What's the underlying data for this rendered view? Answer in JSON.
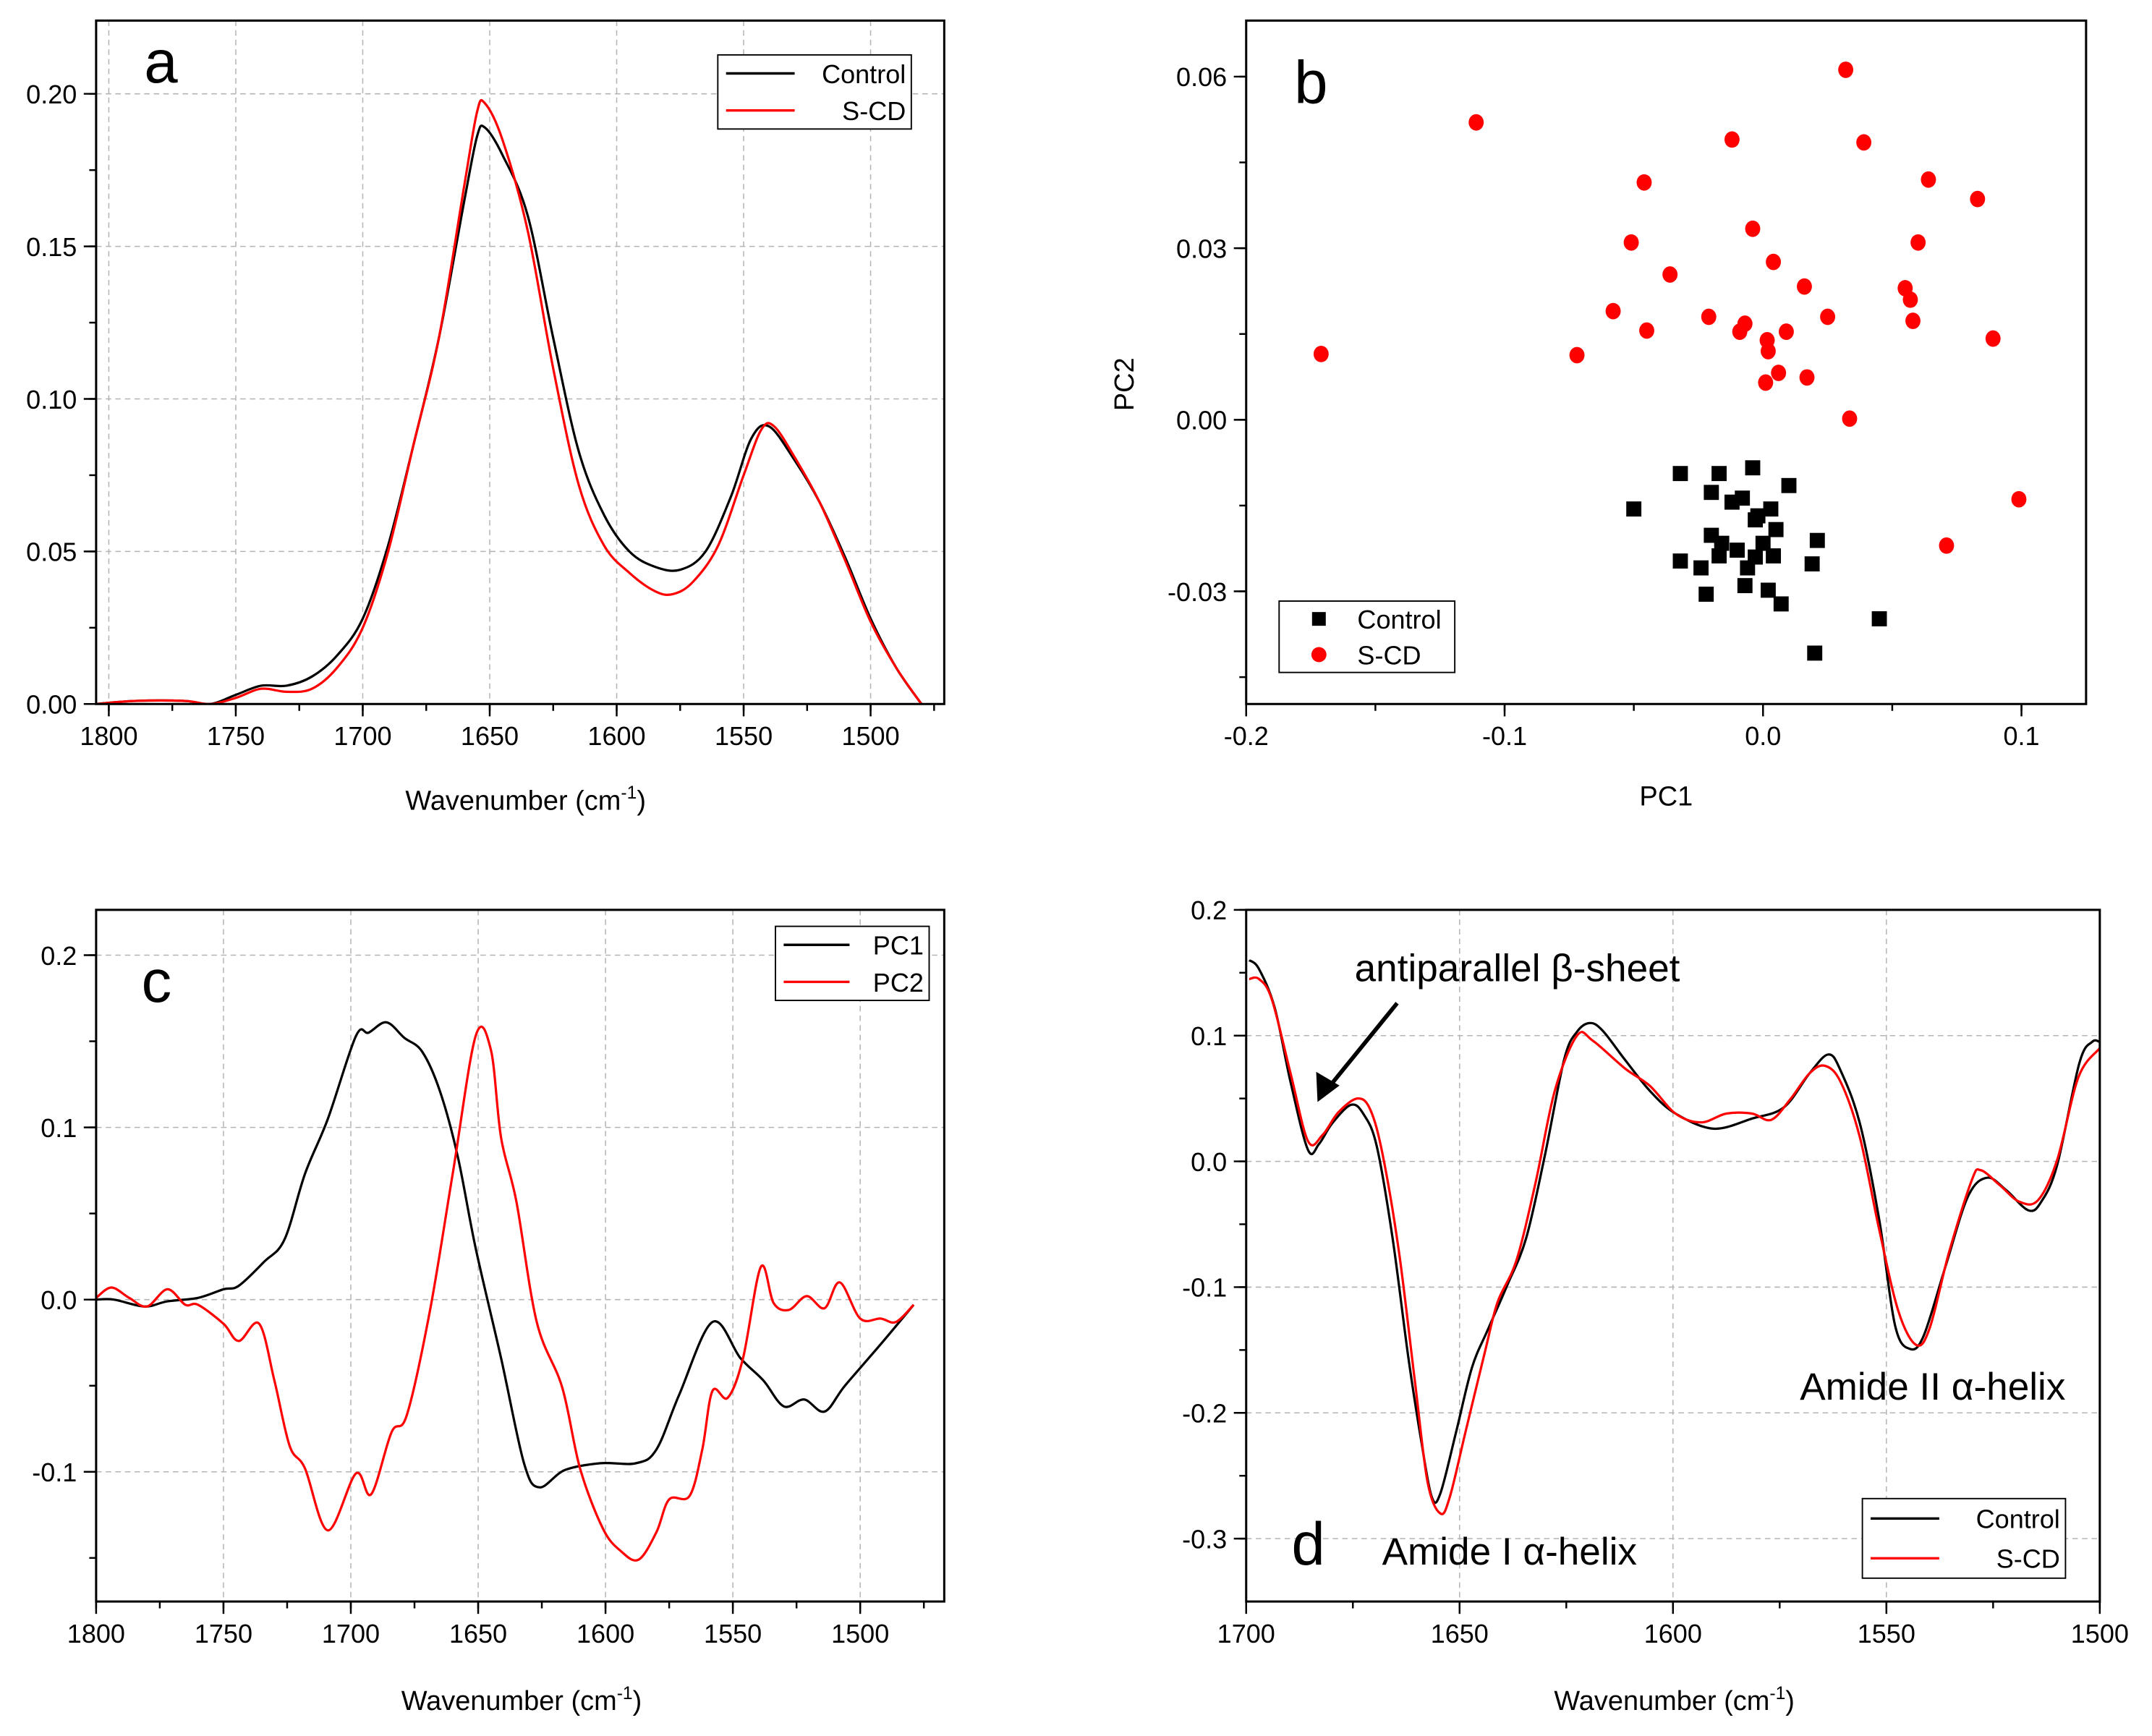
{
  "chart_data": [
    {
      "panel": "a",
      "type": "line",
      "title": "",
      "xlabel": "Wavenumber (cm",
      "xlabel_sup": "-1",
      "xlabel_end": ")",
      "ylabel": "",
      "xlim": [
        1805,
        1471
      ],
      "ylim": [
        0,
        0.224
      ],
      "grid": true,
      "legend_position": "top-right",
      "xticks": [
        {
          "v": 1800,
          "t": "1800"
        },
        {
          "v": 1750,
          "t": "1750"
        },
        {
          "v": 1700,
          "t": "1700"
        },
        {
          "v": 1650,
          "t": "1650"
        },
        {
          "v": 1600,
          "t": "1600"
        },
        {
          "v": 1550,
          "t": "1550"
        },
        {
          "v": 1500,
          "t": "1500"
        }
      ],
      "yticks": [
        {
          "v": 0,
          "t": "0.00"
        },
        {
          "v": 0.05,
          "t": "0.05"
        },
        {
          "v": 0.1,
          "t": "0.10"
        },
        {
          "v": 0.15,
          "t": "0.15"
        },
        {
          "v": 0.2,
          "t": "0.20"
        }
      ],
      "xminor": 25,
      "yminor": 0.025,
      "series": [
        {
          "name": "Control",
          "color": "#000000",
          "x": [
            1805,
            1790,
            1770,
            1760,
            1750,
            1740,
            1730,
            1720,
            1710,
            1700,
            1690,
            1680,
            1670,
            1660,
            1655,
            1652,
            1645,
            1635,
            1625,
            1615,
            1605,
            1595,
            1585,
            1575,
            1565,
            1555,
            1547,
            1540,
            1530,
            1520,
            1510,
            1500,
            1490,
            1480
          ],
          "y": [
            0,
            0.001,
            0.001,
            0,
            0.003,
            0.006,
            0.006,
            0.009,
            0.016,
            0.028,
            0.052,
            0.085,
            0.12,
            0.165,
            0.186,
            0.189,
            0.18,
            0.16,
            0.12,
            0.083,
            0.062,
            0.05,
            0.045,
            0.044,
            0.05,
            0.068,
            0.087,
            0.091,
            0.08,
            0.066,
            0.048,
            0.028,
            0.012,
            0
          ]
        },
        {
          "name": "S-CD",
          "color": "#ff0000",
          "x": [
            1805,
            1790,
            1770,
            1760,
            1750,
            1740,
            1730,
            1720,
            1710,
            1700,
            1690,
            1680,
            1670,
            1660,
            1655,
            1652,
            1645,
            1635,
            1625,
            1615,
            1605,
            1595,
            1585,
            1578,
            1570,
            1560,
            1550,
            1543,
            1538,
            1530,
            1520,
            1510,
            1500,
            1490,
            1480
          ],
          "y": [
            0,
            0.001,
            0.001,
            0,
            0.002,
            0.005,
            0.004,
            0.005,
            0.012,
            0.025,
            0.05,
            0.085,
            0.12,
            0.17,
            0.194,
            0.197,
            0.185,
            0.155,
            0.11,
            0.072,
            0.052,
            0.043,
            0.037,
            0.036,
            0.04,
            0.052,
            0.075,
            0.09,
            0.091,
            0.081,
            0.066,
            0.047,
            0.027,
            0.012,
            0
          ]
        }
      ],
      "annotations": []
    },
    {
      "panel": "b",
      "type": "scatter",
      "title": "",
      "xlabel": "PC1",
      "ylabel": "PC2",
      "xlim": [
        -0.2,
        0.125
      ],
      "ylim": [
        -0.0497,
        0.0698
      ],
      "grid": false,
      "legend_position": "bottom-left",
      "xticks": [
        {
          "v": -0.2,
          "t": "-0.2"
        },
        {
          "v": -0.1,
          "t": "-0.1"
        },
        {
          "v": 0,
          "t": "0.0"
        },
        {
          "v": 0.1,
          "t": "0.1"
        }
      ],
      "yticks": [
        {
          "v": -0.03,
          "t": "-0.03"
        },
        {
          "v": 0,
          "t": "0.00"
        },
        {
          "v": 0.03,
          "t": "0.03"
        },
        {
          "v": 0.06,
          "t": "0.06"
        }
      ],
      "xminor": 0.05,
      "yminor": 0.015,
      "series": [
        {
          "name": "Control",
          "color": "#000000",
          "marker": "square",
          "x": [
            -0.004,
            -0.032,
            -0.017,
            0.01,
            -0.02,
            -0.008,
            -0.012,
            0.003,
            -0.05,
            -0.002,
            -0.003,
            0.005,
            -0.02,
            0.021,
            -0.016,
            0.0,
            -0.01,
            -0.017,
            -0.003,
            0.004,
            -0.032,
            0.019,
            -0.006,
            -0.024,
            -0.007,
            0.002,
            -0.022,
            0.007,
            0.045,
            0.02
          ],
          "y": [
            -0.0084,
            -0.0094,
            -0.0094,
            -0.0115,
            -0.0127,
            -0.0137,
            -0.0144,
            -0.0156,
            -0.0156,
            -0.0168,
            -0.0175,
            -0.0192,
            -0.0202,
            -0.0211,
            -0.0216,
            -0.0216,
            -0.0228,
            -0.0238,
            -0.024,
            -0.0238,
            -0.0247,
            -0.0252,
            -0.0259,
            -0.0259,
            -0.029,
            -0.0298,
            -0.0305,
            -0.0322,
            -0.0348,
            -0.0408
          ]
        },
        {
          "name": "S-CD",
          "color": "#ff0000",
          "marker": "circle",
          "x": [
            0.032,
            -0.111,
            -0.012,
            0.039,
            -0.046,
            0.064,
            0.083,
            -0.004,
            -0.051,
            0.06,
            0.004,
            -0.036,
            0.016,
            0.055,
            0.057,
            -0.058,
            -0.021,
            0.025,
            -0.007,
            0.058,
            -0.045,
            -0.009,
            0.009,
            0.0016,
            -0.171,
            -0.072,
            0.002,
            0.006,
            0.017,
            0.001,
            0.089,
            0.0335,
            0.099,
            0.071
          ],
          "y": [
            0.0612,
            0.052,
            0.049,
            0.0485,
            0.0415,
            0.042,
            0.0386,
            0.0334,
            0.031,
            0.031,
            0.0276,
            0.0254,
            0.0233,
            0.023,
            0.021,
            0.019,
            0.018,
            0.018,
            0.0168,
            0.0173,
            0.0156,
            0.0154,
            0.0154,
            0.0139,
            0.0115,
            0.0113,
            0.012,
            0.0082,
            0.0074,
            0.0065,
            0.0142,
            0.0002,
            -0.0139,
            -0.022
          ]
        }
      ],
      "annotations": []
    },
    {
      "panel": "c",
      "type": "line",
      "title": "",
      "xlabel": "Wavenumber (cm",
      "xlabel_sup": "-1",
      "xlabel_end": ")",
      "ylabel": "",
      "xlim": [
        1800,
        1467
      ],
      "ylim": [
        -0.1753,
        0.2263
      ],
      "grid": true,
      "legend_position": "top-right",
      "xticks": [
        {
          "v": 1800,
          "t": "1800"
        },
        {
          "v": 1750,
          "t": "1750"
        },
        {
          "v": 1700,
          "t": "1700"
        },
        {
          "v": 1650,
          "t": "1650"
        },
        {
          "v": 1600,
          "t": "1600"
        },
        {
          "v": 1550,
          "t": "1550"
        },
        {
          "v": 1500,
          "t": "1500"
        }
      ],
      "yticks": [
        {
          "v": -0.1,
          "t": "-0.1"
        },
        {
          "v": 0,
          "t": "0.0"
        },
        {
          "v": 0.1,
          "t": "0.1"
        },
        {
          "v": 0.2,
          "t": "0.2"
        }
      ],
      "xminor": 25,
      "yminor": 0.05,
      "series": [
        {
          "name": "PC1",
          "color": "#000000",
          "x": [
            1800,
            1793,
            1781,
            1772,
            1760,
            1750,
            1744,
            1734,
            1726,
            1718,
            1709,
            1698,
            1693,
            1686,
            1679,
            1672,
            1665,
            1658,
            1651,
            1641,
            1632,
            1626,
            1616,
            1602,
            1588,
            1580,
            1571,
            1558,
            1547,
            1538,
            1530,
            1522,
            1514,
            1506,
            1492,
            1479
          ],
          "y": [
            0,
            0,
            -0.004,
            -0.001,
            0.001,
            0.006,
            0.008,
            0.022,
            0.035,
            0.073,
            0.105,
            0.153,
            0.155,
            0.161,
            0.152,
            0.144,
            0.121,
            0.083,
            0.03,
            -0.034,
            -0.095,
            -0.109,
            -0.099,
            -0.095,
            -0.095,
            -0.087,
            -0.055,
            -0.013,
            -0.034,
            -0.047,
            -0.062,
            -0.058,
            -0.065,
            -0.05,
            -0.026,
            -0.003
          ]
        },
        {
          "name": "PC2",
          "color": "#ff0000",
          "x": [
            1800,
            1794,
            1787,
            1780,
            1772,
            1765,
            1760,
            1750,
            1744,
            1736,
            1730,
            1724,
            1718,
            1709,
            1698,
            1692,
            1684,
            1678,
            1669,
            1660,
            1651,
            1645,
            1641,
            1635,
            1627,
            1617,
            1610,
            1601,
            1594,
            1587,
            1580,
            1575,
            1567,
            1562,
            1558,
            1552,
            1546,
            1539,
            1534,
            1528,
            1521,
            1514,
            1508,
            1500,
            1492,
            1486,
            1479
          ],
          "y": [
            0.001,
            0.007,
            0.001,
            -0.004,
            0.006,
            -0.003,
            -0.003,
            -0.014,
            -0.024,
            -0.014,
            -0.047,
            -0.085,
            -0.098,
            -0.134,
            -0.101,
            -0.113,
            -0.077,
            -0.067,
            -0.007,
            0.073,
            0.153,
            0.145,
            0.094,
            0.057,
            -0.013,
            -0.051,
            -0.098,
            -0.133,
            -0.146,
            -0.151,
            -0.135,
            -0.116,
            -0.114,
            -0.087,
            -0.053,
            -0.057,
            -0.034,
            0.019,
            -0.002,
            -0.006,
            0.002,
            -0.005,
            0.01,
            -0.011,
            -0.011,
            -0.013,
            -0.003
          ]
        }
      ],
      "annotations": []
    },
    {
      "panel": "d",
      "type": "line",
      "title": "",
      "xlabel": "Wavenumber (cm",
      "xlabel_sup": "-1",
      "xlabel_end": ")",
      "ylabel": "",
      "xlim": [
        1700,
        1500
      ],
      "ylim": [
        -0.35,
        0.2
      ],
      "grid": true,
      "legend_position": "bottom-right",
      "xticks": [
        {
          "v": 1700,
          "t": "1700"
        },
        {
          "v": 1650,
          "t": "1650"
        },
        {
          "v": 1600,
          "t": "1600"
        },
        {
          "v": 1550,
          "t": "1550"
        },
        {
          "v": 1500,
          "t": "1500"
        }
      ],
      "yticks": [
        {
          "v": -0.3,
          "t": "-0.3"
        },
        {
          "v": -0.2,
          "t": "-0.2"
        },
        {
          "v": -0.1,
          "t": "-0.1"
        },
        {
          "v": 0,
          "t": "0.0"
        },
        {
          "v": 0.1,
          "t": "0.1"
        },
        {
          "v": 0.2,
          "t": "0.2"
        }
      ],
      "xminor": 25,
      "yminor": 0.05,
      "series": [
        {
          "name": "Control",
          "color": "#000000",
          "x": [
            1699.3,
            1697,
            1693.3,
            1689.6,
            1685.5,
            1682.9,
            1679.9,
            1675.4,
            1672.4,
            1669.4,
            1665.7,
            1662,
            1659,
            1656.5,
            1654.5,
            1650.8,
            1647.1,
            1643.4,
            1638.9,
            1634.4,
            1630,
            1625.5,
            1622.5,
            1619.5,
            1616.5,
            1611.3,
            1605.4,
            1599.4,
            1590.5,
            1581.5,
            1574,
            1568,
            1563.6,
            1560.7,
            1556.2,
            1551.7,
            1548,
            1544.6,
            1541.3,
            1536.1,
            1530.9,
            1526.4,
            1521.9,
            1516.7,
            1513.7,
            1510,
            1504.8,
            1501.8,
            1500
          ],
          "y": [
            0.16,
            0.153,
            0.122,
            0.063,
            0.009,
            0.014,
            0.03,
            0.045,
            0.037,
            0.012,
            -0.061,
            -0.156,
            -0.222,
            -0.267,
            -0.264,
            -0.215,
            -0.164,
            -0.134,
            -0.099,
            -0.061,
            0.005,
            0.081,
            0.103,
            0.11,
            0.104,
            0.081,
            0.056,
            0.038,
            0.026,
            0.034,
            0.043,
            0.07,
            0.085,
            0.072,
            0.03,
            -0.046,
            -0.13,
            -0.149,
            -0.139,
            -0.083,
            -0.028,
            -0.013,
            -0.023,
            -0.039,
            -0.032,
            -0.003,
            0.078,
            0.095,
            0.095
          ]
        },
        {
          "name": "S-CD",
          "color": "#ff0000",
          "x": [
            1699.3,
            1697,
            1694,
            1689.6,
            1685.5,
            1682.1,
            1678.4,
            1673.9,
            1670.9,
            1668,
            1664.2,
            1660.5,
            1657.5,
            1654.5,
            1652.3,
            1648.6,
            1644.1,
            1641.1,
            1636.7,
            1632.2,
            1627.7,
            1622.5,
            1618.8,
            1611.3,
            1605.4,
            1599.4,
            1593.4,
            1587.5,
            1581.5,
            1577,
            1572.6,
            1568,
            1564.4,
            1560.7,
            1556.2,
            1551.7,
            1547.2,
            1543,
            1539.8,
            1535.3,
            1530,
            1527.9,
            1523.4,
            1518.9,
            1514.5,
            1510,
            1505,
            1500
          ],
          "y": [
            0.145,
            0.145,
            0.129,
            0.07,
            0.016,
            0.021,
            0.039,
            0.05,
            0.041,
            0.005,
            -0.072,
            -0.174,
            -0.255,
            -0.28,
            -0.267,
            -0.215,
            -0.152,
            -0.112,
            -0.079,
            -0.017,
            0.056,
            0.1,
            0.096,
            0.074,
            0.06,
            0.038,
            0.031,
            0.038,
            0.038,
            0.033,
            0.049,
            0.07,
            0.076,
            0.063,
            0.019,
            -0.054,
            -0.119,
            -0.146,
            -0.132,
            -0.072,
            -0.015,
            -0.007,
            -0.019,
            -0.032,
            -0.031,
            0.001,
            0.067,
            0.09
          ]
        }
      ],
      "annotations": [
        {
          "text": "antiparallel β-sheet",
          "arrow_from": [
            1670,
            0.15
          ],
          "arrow_to": [
            1685,
            0.045
          ]
        },
        {
          "text": "Amide I α-helix"
        },
        {
          "text": "Amide II α-helix"
        }
      ]
    }
  ]
}
